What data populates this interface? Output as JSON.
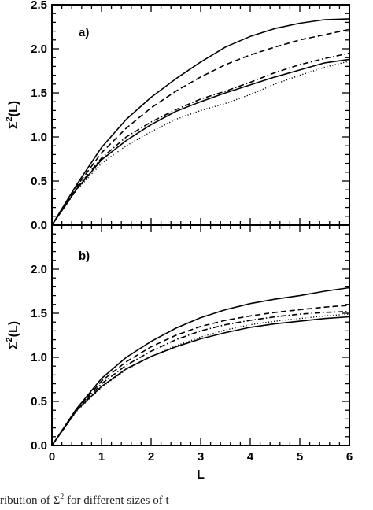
{
  "caption": {
    "lead": "ribution of Σ",
    "sup": "2",
    "tail": " for different sizes of t"
  },
  "chart_data": [
    {
      "type": "line",
      "panel_label": "a)",
      "xlabel": "L",
      "ylabel_base": "Σ",
      "ylabel_sup": "2",
      "ylabel_tail": "(L)",
      "xlim": [
        0,
        6
      ],
      "ylim": [
        0,
        2.5
      ],
      "x_ticks": [
        0,
        1,
        2,
        3,
        4,
        5,
        6
      ],
      "y_ticks": [
        0.0,
        0.5,
        1.0,
        1.5,
        2.0,
        2.5
      ],
      "y_tick_labels": [
        "0.0",
        "0.5",
        "1.0",
        "1.5",
        "2.0",
        "2.5"
      ],
      "show_x_tick_labels": false,
      "grid": false,
      "series": [
        {
          "style": "solid",
          "x": [
            0,
            0.5,
            1.0,
            1.5,
            2.0,
            2.5,
            3.0,
            3.5,
            4.0,
            4.5,
            5.0,
            5.5,
            6.0
          ],
          "values": [
            0,
            0.46,
            0.88,
            1.2,
            1.45,
            1.66,
            1.85,
            2.02,
            2.14,
            2.23,
            2.29,
            2.33,
            2.34
          ]
        },
        {
          "style": "dashed",
          "x": [
            0,
            0.5,
            1.0,
            1.5,
            2.0,
            2.5,
            3.0,
            3.5,
            4.0,
            4.5,
            5.0,
            5.5,
            6.0
          ],
          "values": [
            0,
            0.44,
            0.82,
            1.1,
            1.33,
            1.52,
            1.68,
            1.82,
            1.93,
            2.02,
            2.1,
            2.16,
            2.22
          ]
        },
        {
          "style": "dashdot",
          "x": [
            0,
            0.5,
            1.0,
            1.5,
            2.0,
            2.5,
            3.0,
            3.5,
            4.0,
            4.5,
            5.0,
            5.5,
            6.0
          ],
          "values": [
            0,
            0.42,
            0.76,
            1.0,
            1.17,
            1.31,
            1.43,
            1.52,
            1.62,
            1.73,
            1.82,
            1.89,
            1.95
          ]
        },
        {
          "style": "solid",
          "x": [
            0,
            0.5,
            1.0,
            1.5,
            2.0,
            2.5,
            3.0,
            3.5,
            4.0,
            4.5,
            5.0,
            5.5,
            6.0
          ],
          "values": [
            0,
            0.41,
            0.74,
            0.96,
            1.14,
            1.29,
            1.4,
            1.5,
            1.59,
            1.68,
            1.76,
            1.84,
            1.88
          ]
        },
        {
          "style": "dotted",
          "x": [
            0,
            0.5,
            1.0,
            1.5,
            2.0,
            2.5,
            3.0,
            3.5,
            4.0,
            4.5,
            5.0,
            5.5,
            6.0
          ],
          "values": [
            0,
            0.4,
            0.7,
            0.9,
            1.06,
            1.2,
            1.3,
            1.38,
            1.48,
            1.6,
            1.7,
            1.79,
            1.86
          ]
        }
      ]
    },
    {
      "type": "line",
      "panel_label": "b)",
      "xlabel": "L",
      "ylabel_base": "Σ",
      "ylabel_sup": "2",
      "ylabel_tail": "(L)",
      "xlim": [
        0,
        6
      ],
      "ylim": [
        0,
        2.5
      ],
      "x_ticks": [
        0,
        1,
        2,
        3,
        4,
        5,
        6
      ],
      "x_tick_labels": [
        "0",
        "1",
        "2",
        "3",
        "4",
        "5",
        "6"
      ],
      "y_ticks": [
        0.0,
        0.5,
        1.0,
        1.5,
        2.0
      ],
      "y_tick_labels": [
        "0.0",
        "0.5",
        "1.0",
        "1.5",
        "2.0"
      ],
      "show_x_tick_labels": true,
      "grid": false,
      "series": [
        {
          "style": "solid",
          "x": [
            0,
            0.5,
            1.0,
            1.5,
            2.0,
            2.5,
            3.0,
            3.5,
            4.0,
            4.5,
            5.0,
            5.5,
            6.0
          ],
          "values": [
            0,
            0.42,
            0.76,
            1.0,
            1.18,
            1.33,
            1.45,
            1.54,
            1.61,
            1.66,
            1.7,
            1.75,
            1.79
          ]
        },
        {
          "style": "dashed",
          "x": [
            0,
            0.5,
            1.0,
            1.5,
            2.0,
            2.5,
            3.0,
            3.5,
            4.0,
            4.5,
            5.0,
            5.5,
            6.0
          ],
          "values": [
            0,
            0.41,
            0.73,
            0.95,
            1.12,
            1.25,
            1.35,
            1.42,
            1.47,
            1.51,
            1.54,
            1.57,
            1.59
          ]
        },
        {
          "style": "dashdot",
          "x": [
            0,
            0.5,
            1.0,
            1.5,
            2.0,
            2.5,
            3.0,
            3.5,
            4.0,
            4.5,
            5.0,
            5.5,
            6.0
          ],
          "values": [
            0,
            0.4,
            0.7,
            0.91,
            1.07,
            1.2,
            1.3,
            1.37,
            1.42,
            1.46,
            1.49,
            1.51,
            1.52
          ]
        },
        {
          "style": "dotted",
          "x": [
            0,
            0.5,
            1.0,
            1.5,
            2.0,
            2.5,
            3.0,
            3.5,
            4.0,
            4.5,
            5.0,
            5.5,
            6.0
          ],
          "values": [
            0,
            0.39,
            0.66,
            0.86,
            1.01,
            1.13,
            1.23,
            1.31,
            1.37,
            1.41,
            1.44,
            1.47,
            1.49
          ]
        },
        {
          "style": "solid",
          "x": [
            0,
            0.5,
            1.0,
            1.5,
            2.0,
            2.5,
            3.0,
            3.5,
            4.0,
            4.5,
            5.0,
            5.5,
            6.0
          ],
          "values": [
            0,
            0.4,
            0.67,
            0.87,
            1.01,
            1.12,
            1.21,
            1.28,
            1.34,
            1.38,
            1.41,
            1.44,
            1.46
          ]
        }
      ]
    }
  ]
}
